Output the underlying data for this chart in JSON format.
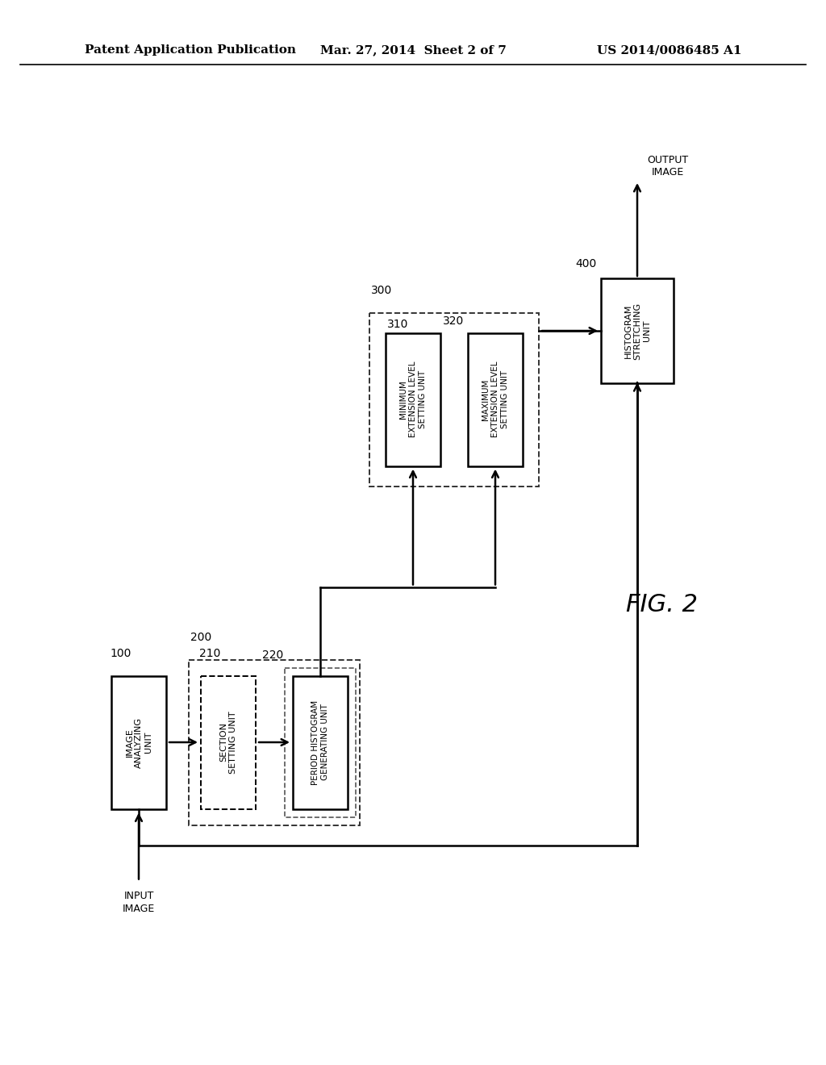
{
  "title_left": "Patent Application Publication",
  "title_center": "Mar. 27, 2014  Sheet 2 of 7",
  "title_right": "US 2014/0086485 A1",
  "fig_label": "FIG. 2",
  "background_color": "#ffffff"
}
